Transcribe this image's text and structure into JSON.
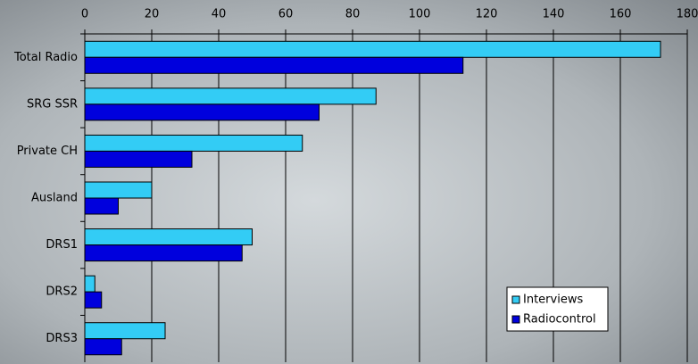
{
  "chart_data": {
    "type": "bar",
    "orientation": "horizontal",
    "categories": [
      "Total Radio",
      "SRG SSR",
      "Private CH",
      "Ausland",
      "DRS1",
      "DRS2",
      "DRS3"
    ],
    "series": [
      {
        "name": "Interviews",
        "color": "#33ccf5",
        "values": [
          172,
          87,
          65,
          20,
          50,
          3,
          24
        ]
      },
      {
        "name": "Radiocontrol",
        "color": "#0000dd",
        "values": [
          113,
          70,
          32,
          10,
          47,
          5,
          11
        ]
      }
    ],
    "xlim": [
      0,
      180
    ],
    "xticks": [
      0,
      20,
      40,
      60,
      80,
      100,
      120,
      140,
      160,
      180
    ],
    "grid": true,
    "legend": "lower right"
  }
}
